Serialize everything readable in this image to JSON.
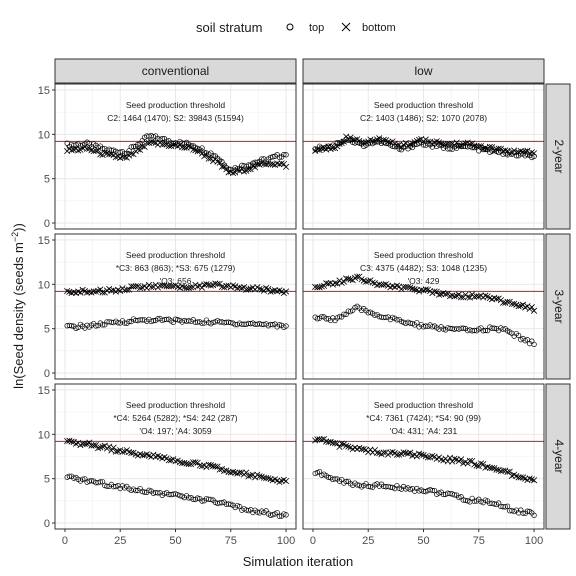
{
  "chart_data": {
    "type": "scatter",
    "title": "",
    "xlabel": "Simulation iteration",
    "ylabel_main": "ln(Seed density (seeds m",
    "ylabel_sup": "−2",
    "ylabel_end": "))",
    "legend": {
      "title": "soil stratum",
      "placement": "top",
      "entries": [
        {
          "name": "top",
          "shape": "circle"
        },
        {
          "name": "bottom",
          "shape": "cross"
        }
      ]
    },
    "xlim": [
      0,
      100
    ],
    "ylim": [
      0,
      15
    ],
    "xticks": [
      0,
      25,
      50,
      75,
      100
    ],
    "yticks": [
      0,
      5,
      10,
      15
    ],
    "threshold_line": {
      "value": 9.2,
      "color": "#ff0000"
    },
    "columns": [
      "conventional",
      "low"
    ],
    "rows": [
      "2-year",
      "3-year",
      "4-year"
    ],
    "panels": [
      {
        "column": "conventional",
        "row": "2-year",
        "annotation": [
          "Seed production threshold",
          "C2: 1464 (1470); S2: 39843 (51594)"
        ],
        "series": [
          {
            "name": "top",
            "control_points": [
              [
                2,
                8.8
              ],
              [
                10,
                8.9
              ],
              [
                20,
                8.2
              ],
              [
                28,
                8.0
              ],
              [
                38,
                9.8
              ],
              [
                48,
                9.2
              ],
              [
                58,
                8.8
              ],
              [
                68,
                7.6
              ],
              [
                75,
                6.0
              ],
              [
                85,
                6.8
              ],
              [
                92,
                7.2
              ],
              [
                100,
                7.8
              ]
            ]
          },
          {
            "name": "bottom",
            "control_points": [
              [
                2,
                8.2
              ],
              [
                10,
                8.4
              ],
              [
                20,
                7.6
              ],
              [
                28,
                7.3
              ],
              [
                38,
                9.0
              ],
              [
                48,
                8.8
              ],
              [
                58,
                8.4
              ],
              [
                68,
                7.0
              ],
              [
                75,
                5.6
              ],
              [
                85,
                6.3
              ],
              [
                92,
                6.8
              ],
              [
                100,
                6.5
              ]
            ]
          }
        ]
      },
      {
        "column": "low",
        "row": "2-year",
        "annotation": [
          "Seed production threshold",
          "C2: 1403 (1486); S2: 1070 (2078)"
        ],
        "series": [
          {
            "name": "top",
            "control_points": [
              [
                2,
                8.5
              ],
              [
                10,
                8.8
              ],
              [
                15,
                9.5
              ],
              [
                22,
                8.8
              ],
              [
                30,
                9.2
              ],
              [
                40,
                8.3
              ],
              [
                48,
                9.0
              ],
              [
                60,
                8.5
              ],
              [
                70,
                8.6
              ],
              [
                80,
                8.1
              ],
              [
                90,
                7.8
              ],
              [
                100,
                7.5
              ]
            ]
          },
          {
            "name": "bottom",
            "control_points": [
              [
                2,
                8.2
              ],
              [
                10,
                8.6
              ],
              [
                15,
                9.6
              ],
              [
                22,
                9.2
              ],
              [
                30,
                9.4
              ],
              [
                40,
                8.7
              ],
              [
                48,
                9.3
              ],
              [
                60,
                8.9
              ],
              [
                70,
                8.9
              ],
              [
                80,
                8.4
              ],
              [
                90,
                8.0
              ],
              [
                100,
                7.9
              ]
            ]
          }
        ]
      },
      {
        "column": "conventional",
        "row": "3-year",
        "annotation": [
          "Seed production threshold",
          "*C3: 863 (863); *S3:  675 (1279)",
          "'O3: 656"
        ],
        "series": [
          {
            "name": "top",
            "control_points": [
              [
                2,
                5.2
              ],
              [
                10,
                5.3
              ],
              [
                20,
                5.6
              ],
              [
                30,
                5.9
              ],
              [
                40,
                6.0
              ],
              [
                50,
                5.9
              ],
              [
                60,
                5.8
              ],
              [
                70,
                5.7
              ],
              [
                80,
                5.6
              ],
              [
                90,
                5.5
              ],
              [
                100,
                5.3
              ]
            ]
          },
          {
            "name": "bottom",
            "control_points": [
              [
                2,
                9.1
              ],
              [
                10,
                9.2
              ],
              [
                20,
                9.3
              ],
              [
                30,
                9.6
              ],
              [
                40,
                9.8
              ],
              [
                50,
                9.7
              ],
              [
                60,
                9.8
              ],
              [
                70,
                9.9
              ],
              [
                80,
                9.6
              ],
              [
                90,
                9.4
              ],
              [
                100,
                9.2
              ]
            ]
          }
        ]
      },
      {
        "column": "low",
        "row": "3-year",
        "annotation": [
          "Seed production threshold",
          "C3: 4375 (4482); S3: 1048 (1235)",
          "'O3: 429"
        ],
        "series": [
          {
            "name": "top",
            "control_points": [
              [
                2,
                6.2
              ],
              [
                10,
                6.1
              ],
              [
                20,
                7.3
              ],
              [
                30,
                6.5
              ],
              [
                40,
                5.8
              ],
              [
                50,
                5.3
              ],
              [
                60,
                5.0
              ],
              [
                70,
                4.8
              ],
              [
                80,
                5.0
              ],
              [
                88,
                4.8
              ],
              [
                95,
                3.8
              ],
              [
                100,
                3.3
              ]
            ]
          },
          {
            "name": "bottom",
            "control_points": [
              [
                2,
                9.8
              ],
              [
                10,
                10.2
              ],
              [
                20,
                10.8
              ],
              [
                30,
                10.0
              ],
              [
                40,
                9.6
              ],
              [
                50,
                9.3
              ],
              [
                60,
                8.9
              ],
              [
                70,
                8.7
              ],
              [
                80,
                8.6
              ],
              [
                90,
                7.8
              ],
              [
                100,
                7.2
              ]
            ]
          }
        ]
      },
      {
        "column": "conventional",
        "row": "4-year",
        "annotation": [
          "Seed production threshold",
          "*C4: 5264 (5282); *S4: 242 (287)",
          "'O4: 197; 'A4: 3059"
        ],
        "series": [
          {
            "name": "top",
            "control_points": [
              [
                2,
                5.1
              ],
              [
                10,
                4.8
              ],
              [
                20,
                4.3
              ],
              [
                30,
                3.9
              ],
              [
                40,
                3.5
              ],
              [
                50,
                3.1
              ],
              [
                60,
                2.7
              ],
              [
                70,
                2.3
              ],
              [
                80,
                1.6
              ],
              [
                90,
                1.2
              ],
              [
                100,
                0.8
              ]
            ]
          },
          {
            "name": "bottom",
            "control_points": [
              [
                2,
                9.1
              ],
              [
                10,
                8.9
              ],
              [
                20,
                8.4
              ],
              [
                30,
                7.9
              ],
              [
                40,
                7.5
              ],
              [
                50,
                7.1
              ],
              [
                60,
                6.6
              ],
              [
                70,
                6.2
              ],
              [
                80,
                5.6
              ],
              [
                90,
                5.1
              ],
              [
                100,
                4.6
              ]
            ]
          }
        ]
      },
      {
        "column": "low",
        "row": "4-year",
        "annotation": [
          "Seed production threshold",
          "*C4: 7361 (7424); *S4: 90 (99)",
          "'O4: 431; 'A4: 231"
        ],
        "series": [
          {
            "name": "top",
            "control_points": [
              [
                2,
                5.7
              ],
              [
                10,
                4.9
              ],
              [
                20,
                4.3
              ],
              [
                30,
                4.2
              ],
              [
                40,
                4.0
              ],
              [
                50,
                3.7
              ],
              [
                60,
                3.3
              ],
              [
                70,
                2.6
              ],
              [
                80,
                2.4
              ],
              [
                90,
                1.5
              ],
              [
                100,
                1.0
              ]
            ]
          },
          {
            "name": "bottom",
            "control_points": [
              [
                2,
                9.5
              ],
              [
                10,
                8.9
              ],
              [
                20,
                8.4
              ],
              [
                30,
                7.9
              ],
              [
                40,
                7.8
              ],
              [
                50,
                7.6
              ],
              [
                60,
                7.2
              ],
              [
                70,
                6.9
              ],
              [
                80,
                6.3
              ],
              [
                90,
                5.5
              ],
              [
                100,
                4.8
              ]
            ]
          }
        ]
      }
    ]
  }
}
